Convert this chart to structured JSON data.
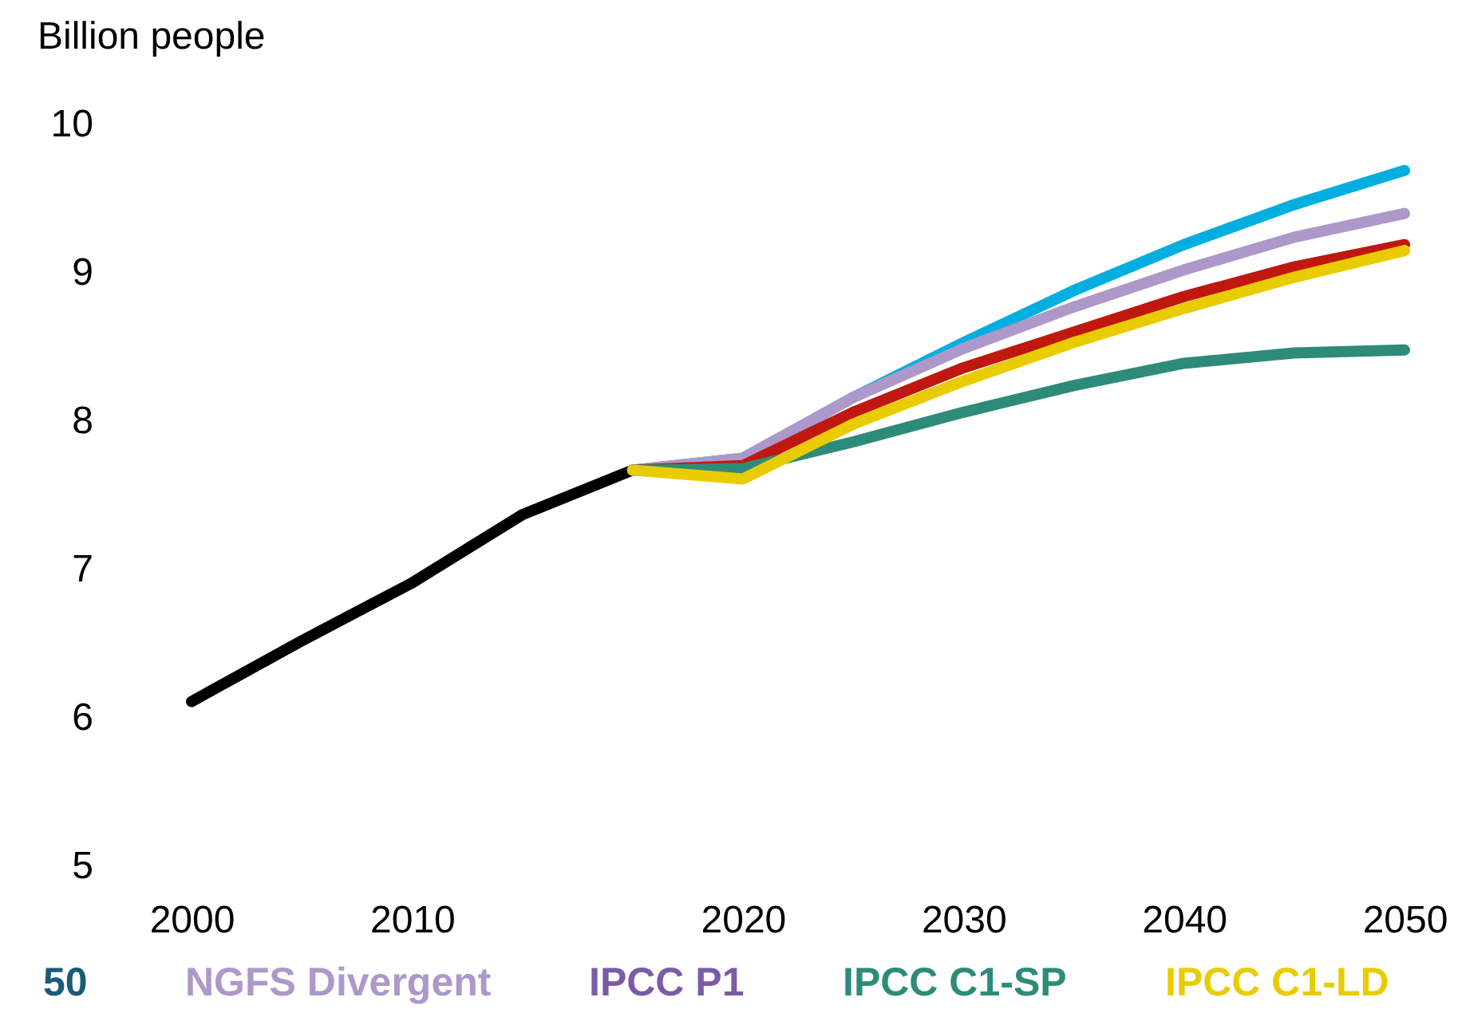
{
  "chart_data": {
    "type": "line",
    "ylabel": "Billion people",
    "categories": [
      "2000",
      null,
      "2010",
      null,
      null,
      "2020",
      null,
      "2030",
      null,
      "2040",
      null,
      "2050"
    ],
    "series": [
      {
        "color": "#000000",
        "values": [
          6.11,
          6.52,
          6.91,
          7.37,
          7.67,
          null,
          null,
          null,
          null,
          null,
          null,
          null
        ]
      },
      {
        "name": "50",
        "color": "#1b5a78",
        "values": [
          null,
          null,
          null,
          null,
          null,
          null,
          null,
          null,
          null,
          null,
          null,
          null
        ]
      },
      {
        "color": "#00aee0",
        "values": [
          null,
          null,
          null,
          null,
          7.67,
          7.75,
          8.16,
          8.53,
          8.88,
          9.19,
          9.46,
          9.69
        ]
      },
      {
        "name": "NGFS Divergent",
        "color": "#ae98c9",
        "values": [
          null,
          null,
          null,
          null,
          7.67,
          7.75,
          8.16,
          8.49,
          8.77,
          9.02,
          9.24,
          9.4
        ]
      },
      {
        "name": "IPCC P1",
        "color": "#7b5ba6",
        "values": [
          null,
          null,
          null,
          null,
          null,
          null,
          null,
          null,
          null,
          null,
          null,
          null
        ]
      },
      {
        "color": "#c0180f",
        "values": [
          null,
          null,
          null,
          null,
          7.67,
          7.7,
          8.06,
          8.36,
          8.6,
          8.84,
          9.04,
          9.19
        ]
      },
      {
        "name": "IPCC C1-SP",
        "color": "#2e8b7a",
        "values": [
          null,
          null,
          null,
          null,
          7.67,
          7.68,
          7.86,
          8.06,
          8.24,
          8.39,
          8.46,
          8.48
        ]
      },
      {
        "name": "IPCC C1-LD",
        "color": "#e8cc00",
        "values": [
          null,
          null,
          null,
          null,
          7.67,
          7.61,
          7.98,
          8.27,
          8.53,
          8.76,
          8.97,
          9.15
        ]
      }
    ],
    "ylim": [
      5,
      10
    ],
    "yticks": [
      5,
      6,
      7,
      8,
      9,
      10
    ],
    "legend": "bottom",
    "grid": false,
    "line_style": "solid"
  }
}
